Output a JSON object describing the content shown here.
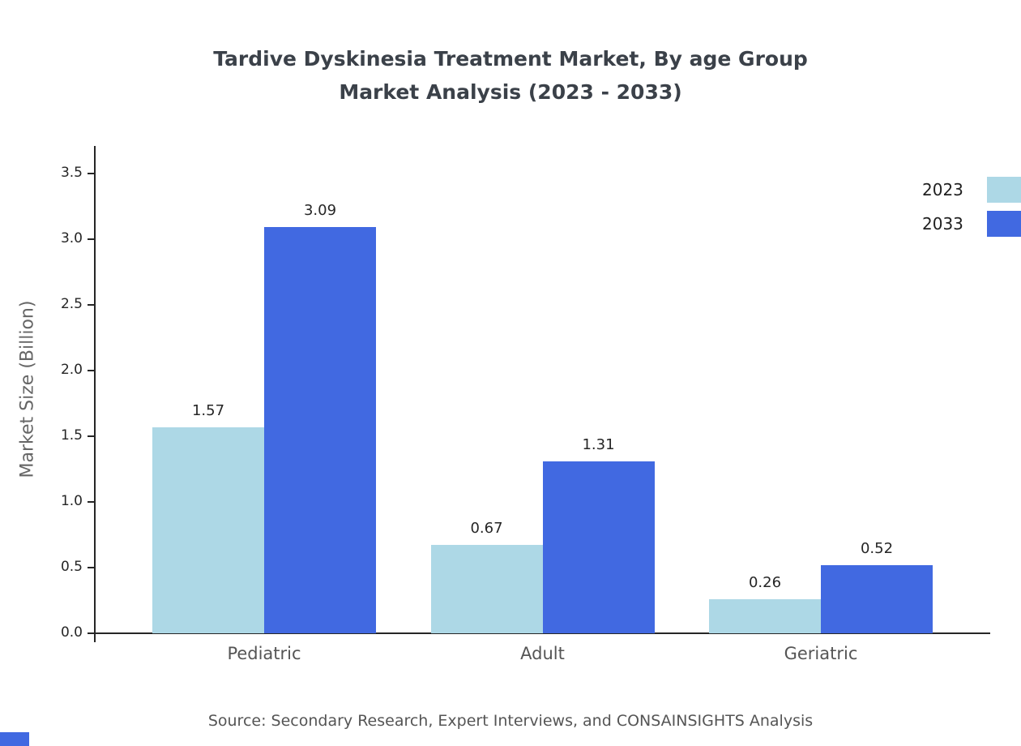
{
  "title": {
    "line1": "Tardive Dyskinesia Treatment Market, By age Group",
    "line2": "Market Analysis (2023 - 2033)"
  },
  "footer": {
    "source": "Source: Secondary Research, Expert Interviews, and CONSAINSIGHTS Analysis"
  },
  "chart_data": {
    "type": "bar",
    "title": "Tardive Dyskinesia Treatment Market, By age Group Market Analysis (2023 - 2033)",
    "categories": [
      "Pediatric",
      "Adult",
      "Geriatric"
    ],
    "series": [
      {
        "name": "2023",
        "color": "#ADD8E6",
        "values": [
          1.57,
          0.67,
          0.26
        ]
      },
      {
        "name": "2033",
        "color": "#4169E1",
        "values": [
          3.09,
          1.31,
          0.52
        ]
      }
    ],
    "xlabel": "",
    "ylabel": "Market Size (Billion)",
    "ylim": [
      0,
      3.7
    ],
    "yticks": [
      0,
      0.5,
      1,
      1.5,
      2,
      2.5,
      3,
      3.5
    ],
    "grid": false,
    "legend_position": "top-right",
    "value_labels": true
  },
  "colors": {
    "axis": "#262626",
    "title_text": "#3b4149",
    "category_text": "#555555",
    "source_text": "#555555",
    "accent_2023": "#ADD8E6",
    "accent_2033": "#4169E1"
  }
}
